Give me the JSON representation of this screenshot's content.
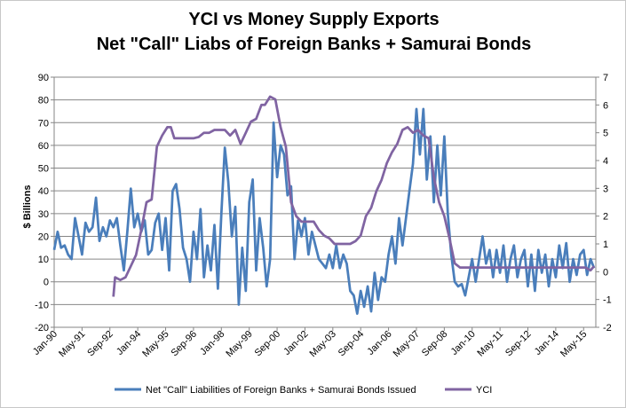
{
  "chart_data": {
    "type": "line",
    "title_lines": [
      "YCI vs Money Supply Exports",
      "Net \"Call\" Liabs of Foreign Banks + Samurai Bonds"
    ],
    "ylabel": "$ Billions",
    "y2label": "",
    "ylim": [
      -20,
      90
    ],
    "y2lim": [
      -2,
      7
    ],
    "y_ticks": [
      "-20",
      "-10",
      "0",
      "10",
      "20",
      "30",
      "40",
      "50",
      "60",
      "70",
      "80",
      "90"
    ],
    "y2_ticks": [
      "-2",
      "-1",
      "0",
      "1",
      "2",
      "3",
      "4",
      "5",
      "6",
      "7"
    ],
    "x_range": [
      "1990-01",
      "2015-12"
    ],
    "x_ticks": [
      "Jan-90",
      "May-91",
      "Sep-92",
      "Jan-94",
      "May-95",
      "Sep-96",
      "Jan-98",
      "May-99",
      "Sep-00",
      "Jan-02",
      "May-03",
      "Sep-04",
      "Jan-06",
      "May-07",
      "Sep-08",
      "Jan-10",
      "May-11",
      "Sep-12",
      "Jan-14",
      "May-15"
    ],
    "grid": true,
    "legend_position": "bottom",
    "series": [
      {
        "name": "Net \"Call\" Liabilities of Foreign Banks + Samurai Bonds Issued",
        "axis": "left",
        "color": "#4a7ebb",
        "points": [
          [
            "1990-01",
            14
          ],
          [
            "1990-03",
            22
          ],
          [
            "1990-05",
            15
          ],
          [
            "1990-07",
            16
          ],
          [
            "1990-09",
            12
          ],
          [
            "1990-11",
            10
          ],
          [
            "1991-01",
            28
          ],
          [
            "1991-03",
            20
          ],
          [
            "1991-05",
            12
          ],
          [
            "1991-07",
            26
          ],
          [
            "1991-09",
            22
          ],
          [
            "1991-11",
            24
          ],
          [
            "1992-01",
            37
          ],
          [
            "1992-03",
            18
          ],
          [
            "1992-05",
            24
          ],
          [
            "1992-07",
            20
          ],
          [
            "1992-09",
            27
          ],
          [
            "1992-11",
            24
          ],
          [
            "1993-01",
            28
          ],
          [
            "1993-03",
            16
          ],
          [
            "1993-05",
            5
          ],
          [
            "1993-07",
            22
          ],
          [
            "1993-09",
            41
          ],
          [
            "1993-11",
            24
          ],
          [
            "1994-01",
            30
          ],
          [
            "1994-03",
            22
          ],
          [
            "1994-05",
            27
          ],
          [
            "1994-07",
            12
          ],
          [
            "1994-09",
            14
          ],
          [
            "1994-11",
            26
          ],
          [
            "1995-01",
            30
          ],
          [
            "1995-03",
            14
          ],
          [
            "1995-05",
            28
          ],
          [
            "1995-07",
            5
          ],
          [
            "1995-09",
            40
          ],
          [
            "1995-11",
            43
          ],
          [
            "1996-01",
            32
          ],
          [
            "1996-03",
            15
          ],
          [
            "1996-05",
            10
          ],
          [
            "1996-07",
            0
          ],
          [
            "1996-09",
            22
          ],
          [
            "1996-11",
            10
          ],
          [
            "1997-01",
            32
          ],
          [
            "1997-03",
            2
          ],
          [
            "1997-05",
            16
          ],
          [
            "1997-07",
            5
          ],
          [
            "1997-09",
            25
          ],
          [
            "1997-11",
            -3
          ],
          [
            "1998-01",
            30
          ],
          [
            "1998-03",
            59
          ],
          [
            "1998-05",
            44
          ],
          [
            "1998-07",
            20
          ],
          [
            "1998-09",
            33
          ],
          [
            "1998-11",
            -10
          ],
          [
            "1999-01",
            15
          ],
          [
            "1999-03",
            -4
          ],
          [
            "1999-05",
            35
          ],
          [
            "1999-07",
            45
          ],
          [
            "1999-09",
            5
          ],
          [
            "1999-11",
            28
          ],
          [
            "2000-01",
            15
          ],
          [
            "2000-03",
            -2
          ],
          [
            "2000-05",
            10
          ],
          [
            "2000-07",
            70
          ],
          [
            "2000-09",
            46
          ],
          [
            "2000-11",
            60
          ],
          [
            "2001-01",
            56
          ],
          [
            "2001-03",
            38
          ],
          [
            "2001-05",
            42
          ],
          [
            "2001-07",
            10
          ],
          [
            "2001-09",
            27
          ],
          [
            "2001-11",
            20
          ],
          [
            "2002-01",
            28
          ],
          [
            "2002-03",
            12
          ],
          [
            "2002-05",
            22
          ],
          [
            "2002-07",
            16
          ],
          [
            "2002-09",
            10
          ],
          [
            "2002-11",
            8
          ],
          [
            "2003-01",
            6
          ],
          [
            "2003-03",
            12
          ],
          [
            "2003-05",
            6
          ],
          [
            "2003-07",
            16
          ],
          [
            "2003-09",
            6
          ],
          [
            "2003-11",
            12
          ],
          [
            "2004-01",
            8
          ],
          [
            "2004-03",
            -4
          ],
          [
            "2004-05",
            -6
          ],
          [
            "2004-07",
            -14
          ],
          [
            "2004-09",
            -4
          ],
          [
            "2004-11",
            -11
          ],
          [
            "2005-01",
            -2
          ],
          [
            "2005-03",
            -13
          ],
          [
            "2005-05",
            4
          ],
          [
            "2005-07",
            -8
          ],
          [
            "2005-09",
            2
          ],
          [
            "2005-11",
            0
          ],
          [
            "2006-01",
            12
          ],
          [
            "2006-03",
            20
          ],
          [
            "2006-05",
            8
          ],
          [
            "2006-07",
            28
          ],
          [
            "2006-09",
            16
          ],
          [
            "2006-11",
            28
          ],
          [
            "2007-01",
            40
          ],
          [
            "2007-03",
            52
          ],
          [
            "2007-05",
            76
          ],
          [
            "2007-07",
            56
          ],
          [
            "2007-09",
            76
          ],
          [
            "2007-11",
            45
          ],
          [
            "2008-01",
            64
          ],
          [
            "2008-03",
            35
          ],
          [
            "2008-05",
            60
          ],
          [
            "2008-07",
            38
          ],
          [
            "2008-09",
            64
          ],
          [
            "2008-11",
            30
          ],
          [
            "2009-01",
            12
          ],
          [
            "2009-03",
            0
          ],
          [
            "2009-05",
            -2
          ],
          [
            "2009-07",
            -1
          ],
          [
            "2009-09",
            -6
          ],
          [
            "2009-11",
            2
          ],
          [
            "2010-01",
            10
          ],
          [
            "2010-03",
            0
          ],
          [
            "2010-05",
            10
          ],
          [
            "2010-07",
            20
          ],
          [
            "2010-09",
            8
          ],
          [
            "2010-11",
            14
          ],
          [
            "2011-01",
            2
          ],
          [
            "2011-03",
            14
          ],
          [
            "2011-05",
            4
          ],
          [
            "2011-07",
            16
          ],
          [
            "2011-09",
            0
          ],
          [
            "2011-11",
            10
          ],
          [
            "2012-01",
            16
          ],
          [
            "2012-03",
            2
          ],
          [
            "2012-05",
            10
          ],
          [
            "2012-07",
            14
          ],
          [
            "2012-09",
            -2
          ],
          [
            "2012-11",
            12
          ],
          [
            "2013-01",
            -4
          ],
          [
            "2013-03",
            14
          ],
          [
            "2013-05",
            4
          ],
          [
            "2013-07",
            12
          ],
          [
            "2013-09",
            -2
          ],
          [
            "2013-11",
            10
          ],
          [
            "2014-01",
            2
          ],
          [
            "2014-03",
            16
          ],
          [
            "2014-05",
            6
          ],
          [
            "2014-07",
            17
          ],
          [
            "2014-09",
            0
          ],
          [
            "2014-11",
            10
          ],
          [
            "2015-01",
            3
          ],
          [
            "2015-03",
            12
          ],
          [
            "2015-05",
            14
          ],
          [
            "2015-07",
            3
          ],
          [
            "2015-09",
            10
          ],
          [
            "2015-11",
            6
          ]
        ]
      },
      {
        "name": "YCI",
        "axis": "right",
        "color": "#8064a2",
        "points": [
          [
            "1992-11",
            -0.9
          ],
          [
            "1992-12",
            -0.2
          ],
          [
            "1993-03",
            -0.3
          ],
          [
            "1993-06",
            -0.2
          ],
          [
            "1993-09",
            0.2
          ],
          [
            "1993-12",
            0.6
          ],
          [
            "1994-03",
            1.5
          ],
          [
            "1994-06",
            2.5
          ],
          [
            "1994-09",
            2.6
          ],
          [
            "1994-12",
            4.5
          ],
          [
            "1995-03",
            4.9
          ],
          [
            "1995-06",
            5.2
          ],
          [
            "1995-08",
            5.2
          ],
          [
            "1995-10",
            4.8
          ],
          [
            "1996-01",
            4.8
          ],
          [
            "1996-06",
            4.8
          ],
          [
            "1996-09",
            4.8
          ],
          [
            "1996-12",
            4.85
          ],
          [
            "1997-03",
            5.0
          ],
          [
            "1997-06",
            5.0
          ],
          [
            "1997-09",
            5.1
          ],
          [
            "1997-12",
            5.1
          ],
          [
            "1998-03",
            5.1
          ],
          [
            "1998-06",
            4.9
          ],
          [
            "1998-09",
            5.1
          ],
          [
            "1998-12",
            4.6
          ],
          [
            "1999-03",
            5.0
          ],
          [
            "1999-06",
            5.4
          ],
          [
            "1999-09",
            5.5
          ],
          [
            "1999-12",
            6.0
          ],
          [
            "2000-02",
            6.0
          ],
          [
            "2000-05",
            6.3
          ],
          [
            "2000-08",
            6.2
          ],
          [
            "2000-11",
            5.2
          ],
          [
            "2001-02",
            4.5
          ],
          [
            "2001-05",
            2.5
          ],
          [
            "2001-08",
            2.0
          ],
          [
            "2001-11",
            1.8
          ],
          [
            "2002-03",
            1.8
          ],
          [
            "2002-06",
            1.8
          ],
          [
            "2002-09",
            1.5
          ],
          [
            "2002-12",
            1.3
          ],
          [
            "2003-03",
            1.2
          ],
          [
            "2003-06",
            1.0
          ],
          [
            "2003-12",
            1.0
          ],
          [
            "2004-03",
            1.0
          ],
          [
            "2004-06",
            1.1
          ],
          [
            "2004-09",
            1.3
          ],
          [
            "2004-12",
            2.0
          ],
          [
            "2005-03",
            2.3
          ],
          [
            "2005-06",
            2.9
          ],
          [
            "2005-09",
            3.3
          ],
          [
            "2005-12",
            3.9
          ],
          [
            "2006-03",
            4.3
          ],
          [
            "2006-06",
            4.6
          ],
          [
            "2006-09",
            5.1
          ],
          [
            "2006-12",
            5.2
          ],
          [
            "2007-03",
            5.0
          ],
          [
            "2007-06",
            5.1
          ],
          [
            "2007-09",
            4.9
          ],
          [
            "2007-12",
            4.8
          ],
          [
            "2008-03",
            3.4
          ],
          [
            "2008-06",
            2.5
          ],
          [
            "2008-09",
            2.0
          ],
          [
            "2008-12",
            1.2
          ],
          [
            "2009-03",
            0.3
          ],
          [
            "2009-06",
            0.15
          ],
          [
            "2009-12",
            0.15
          ],
          [
            "2010-06",
            0.15
          ],
          [
            "2011-01",
            0.15
          ],
          [
            "2012-01",
            0.15
          ],
          [
            "2013-01",
            0.15
          ],
          [
            "2014-01",
            0.15
          ],
          [
            "2015-01",
            0.15
          ],
          [
            "2015-06",
            0.15
          ],
          [
            "2015-09",
            0.05
          ],
          [
            "2015-11",
            0.2
          ]
        ]
      }
    ]
  }
}
